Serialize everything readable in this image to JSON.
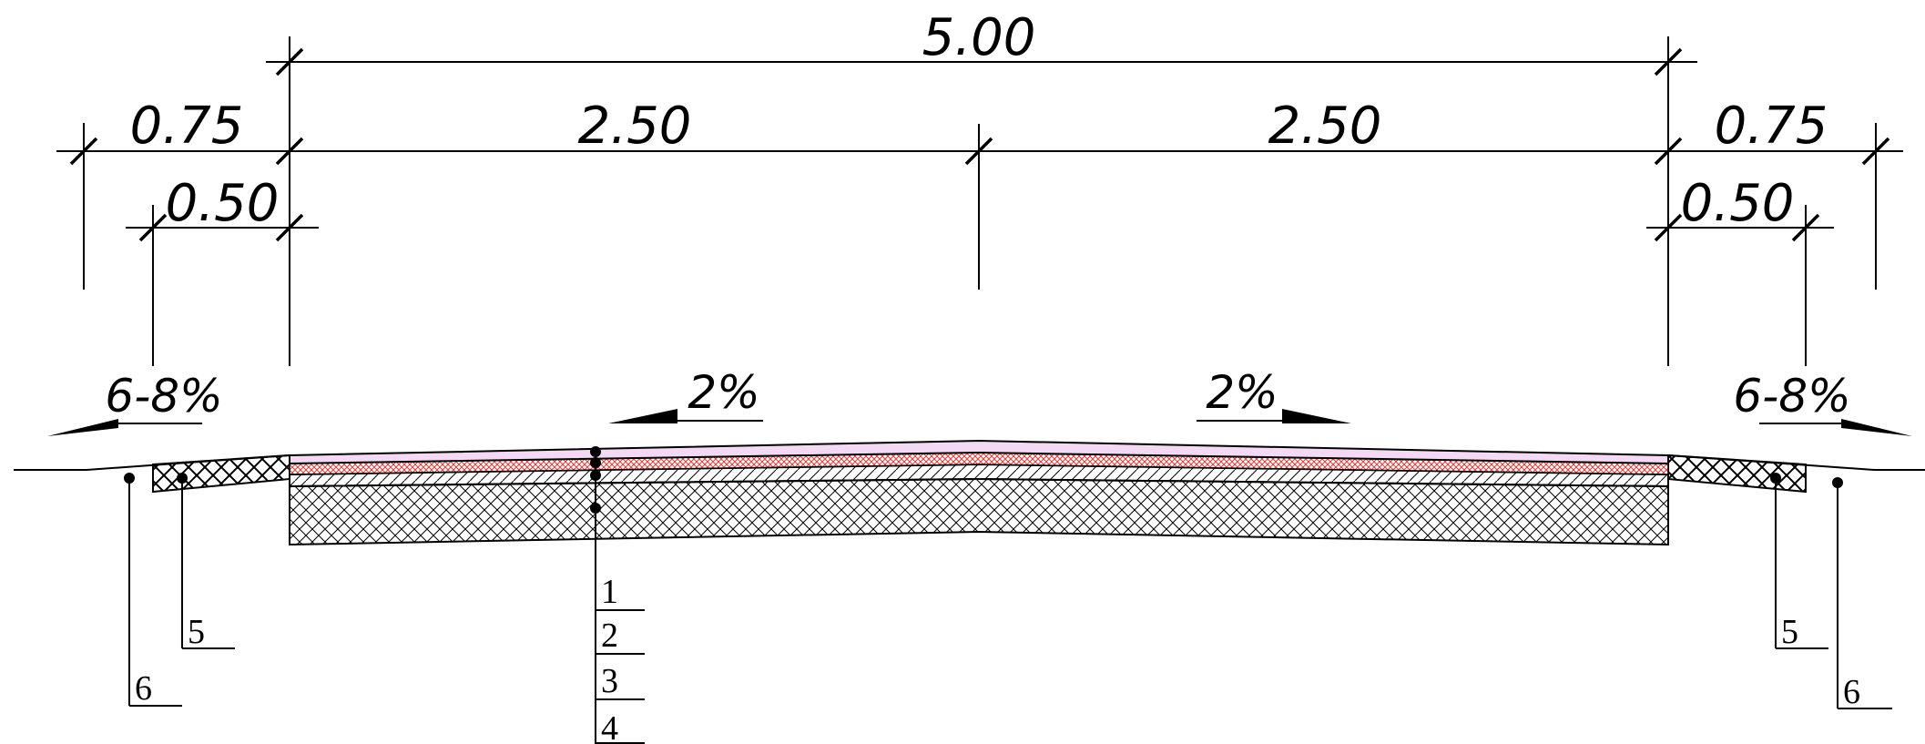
{
  "dimensions": {
    "total_width": "5.00",
    "left_outer": "0.75",
    "left_lane": "2.50",
    "right_lane": "2.50",
    "right_outer": "0.75",
    "left_inner": "0.50",
    "right_inner": "0.50"
  },
  "slopes": {
    "left_shoulder": "6-8%",
    "left_lane": "2%",
    "right_lane": "2%",
    "right_shoulder": "6-8%"
  },
  "callouts": {
    "layers": [
      "1",
      "2",
      "3",
      "4"
    ],
    "left_5": "5",
    "left_6": "6",
    "right_5": "5",
    "right_6": "6"
  },
  "colors": {
    "line": "#000000",
    "surface_layer": "#f3d9f3",
    "red_layer": "#e53935"
  }
}
